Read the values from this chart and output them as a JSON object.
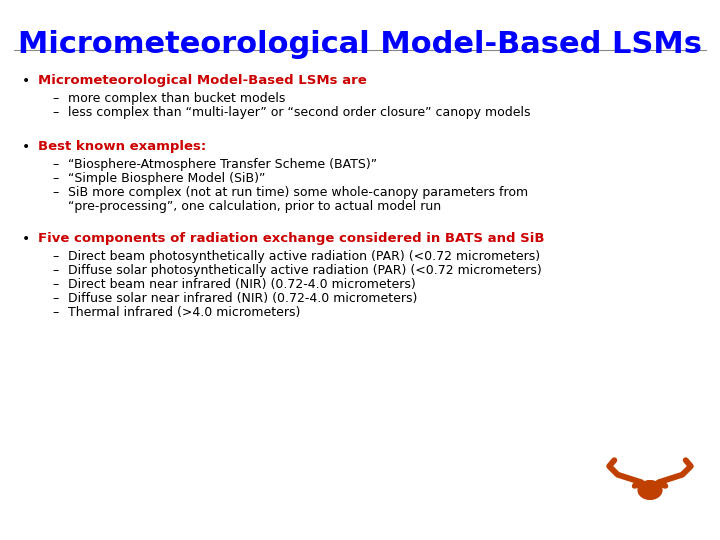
{
  "title": "Micrometeorological Model-Based LSMs",
  "title_color": "#0000ff",
  "title_fontsize": 22,
  "background_color": "#ffffff",
  "bullet_color": "#000000",
  "red_color": "#cc0000",
  "black_color": "#000000",
  "longhorn_color": "#bf4000",
  "sections": [
    {
      "header": "Micrometeorological Model-Based LSMs are",
      "header_color": "#cc0000",
      "sub_items": [
        "more complex than bucket models",
        "less complex than “multi-layer” or “second order closure” canopy models"
      ]
    },
    {
      "header": "Best known examples:",
      "header_color": "#cc0000",
      "sub_items": [
        "“Biosphere-Atmosphere Transfer Scheme (BATS)”",
        "“Simple Biosphere Model (SiB)”",
        "SiB more complex (not at run time) some whole-canopy parameters from “pre-processing”, one calculation, prior to actual model run"
      ]
    },
    {
      "header": "Five components of radiation exchange considered in BATS and SiB",
      "header_color": "#cc0000",
      "sub_items": [
        "Direct beam photosynthetically active radiation (PAR) (<0.72 micrometers)",
        "Diffuse solar photosynthetically active radiation (PAR) (<0.72 micrometers)",
        "Direct beam near infrared (NIR) (0.72-4.0 micrometers)",
        "Diffuse solar near infrared (NIR) (0.72-4.0 micrometers)",
        "Thermal infrared (>4.0 micrometers)"
      ]
    }
  ]
}
